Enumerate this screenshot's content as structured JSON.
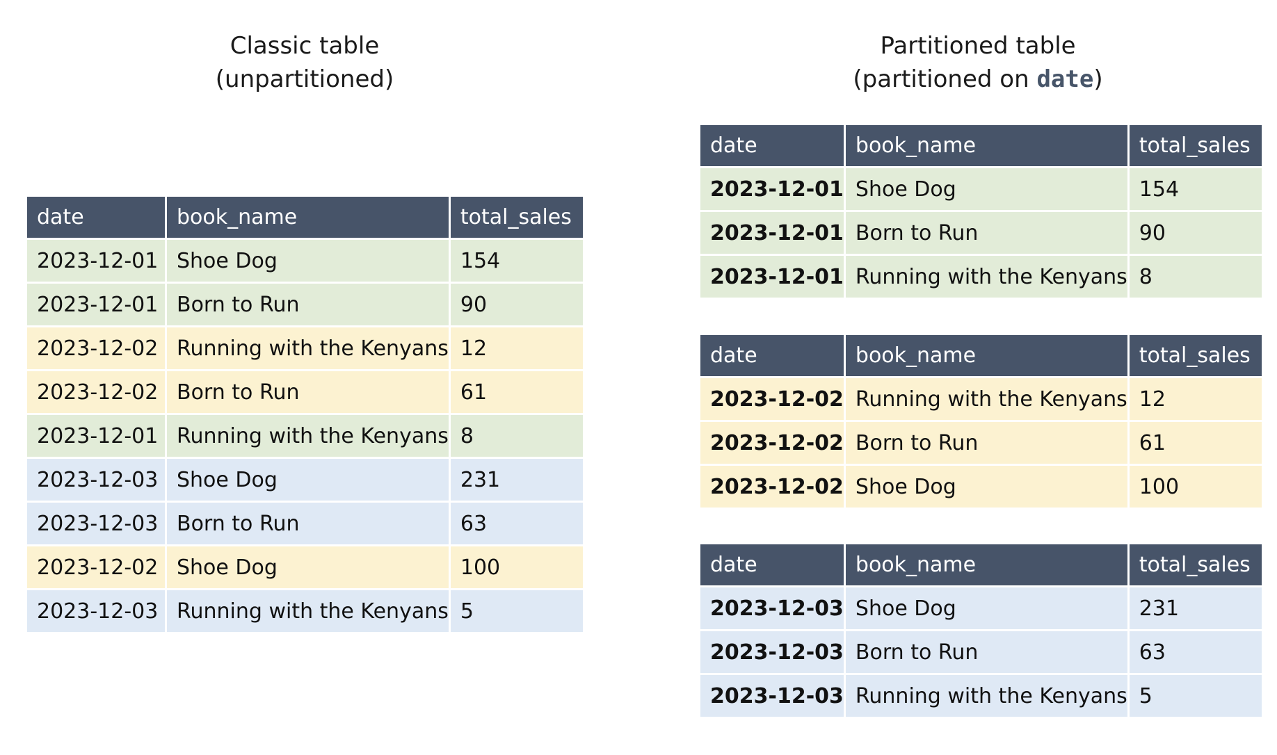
{
  "classic": {
    "title_line1": "Classic table",
    "title_line2": "(unpartitioned)",
    "headers": [
      "date",
      "book_name",
      "total_sales"
    ],
    "rows": [
      {
        "date": "2023-12-01",
        "book_name": "Shoe Dog",
        "total_sales": "154",
        "partition": "2023-12-01"
      },
      {
        "date": "2023-12-01",
        "book_name": "Born to Run",
        "total_sales": "90",
        "partition": "2023-12-01"
      },
      {
        "date": "2023-12-02",
        "book_name": "Running with the Kenyans",
        "total_sales": "12",
        "partition": "2023-12-02"
      },
      {
        "date": "2023-12-02",
        "book_name": "Born to Run",
        "total_sales": "61",
        "partition": "2023-12-02"
      },
      {
        "date": "2023-12-01",
        "book_name": "Running with the Kenyans",
        "total_sales": "8",
        "partition": "2023-12-01"
      },
      {
        "date": "2023-12-03",
        "book_name": "Shoe Dog",
        "total_sales": "231",
        "partition": "2023-12-03"
      },
      {
        "date": "2023-12-03",
        "book_name": "Born to Run",
        "total_sales": "63",
        "partition": "2023-12-03"
      },
      {
        "date": "2023-12-02",
        "book_name": "Shoe Dog",
        "total_sales": "100",
        "partition": "2023-12-02"
      },
      {
        "date": "2023-12-03",
        "book_name": "Running with the Kenyans",
        "total_sales": "5",
        "partition": "2023-12-03"
      }
    ]
  },
  "partitioned": {
    "title_line1": "Partitioned table",
    "title_prefix": "(partitioned on ",
    "title_code": "date",
    "title_suffix": ")",
    "headers": [
      "date",
      "book_name",
      "total_sales"
    ],
    "partitions": [
      {
        "date": "2023-12-01",
        "rows": [
          {
            "date": "2023-12-01",
            "book_name": "Shoe Dog",
            "total_sales": "154"
          },
          {
            "date": "2023-12-01",
            "book_name": "Born to Run",
            "total_sales": "90"
          },
          {
            "date": "2023-12-01",
            "book_name": "Running with the Kenyans",
            "total_sales": "8"
          }
        ]
      },
      {
        "date": "2023-12-02",
        "rows": [
          {
            "date": "2023-12-02",
            "book_name": "Running with the Kenyans",
            "total_sales": "12"
          },
          {
            "date": "2023-12-02",
            "book_name": "Born to Run",
            "total_sales": "61"
          },
          {
            "date": "2023-12-02",
            "book_name": "Shoe Dog",
            "total_sales": "100"
          }
        ]
      },
      {
        "date": "2023-12-03",
        "rows": [
          {
            "date": "2023-12-03",
            "book_name": "Shoe Dog",
            "total_sales": "231"
          },
          {
            "date": "2023-12-03",
            "book_name": "Born to Run",
            "total_sales": "63"
          },
          {
            "date": "2023-12-03",
            "book_name": "Running with the Kenyans",
            "total_sales": "5"
          }
        ]
      }
    ]
  },
  "colors": {
    "header": "#475469",
    "partition_2023_12_01": "#e2ecd8",
    "partition_2023_12_02": "#fcf2d1",
    "partition_2023_12_03": "#dfe9f5"
  }
}
